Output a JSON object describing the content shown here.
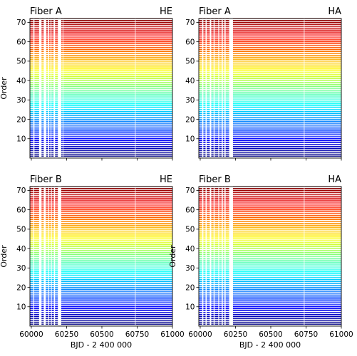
{
  "chart_data": [
    {
      "type": "scatter",
      "title_left": "Fiber A",
      "title_right": "HE",
      "xlabel": "",
      "ylabel": "Order",
      "xlim": [
        59990,
        61000
      ],
      "ylim": [
        0,
        72
      ],
      "xticks": [
        60000,
        60250,
        60500,
        60750,
        61000
      ],
      "yticks": [
        10,
        20,
        30,
        40,
        50,
        60,
        70
      ],
      "show_xtick_labels": false,
      "orders": [
        1,
        72
      ],
      "colormap": "jet",
      "observation_gaps_bjd": [
        [
          60014,
          60022
        ],
        [
          60055,
          60072
        ],
        [
          60088,
          60105
        ],
        [
          60118,
          60126
        ],
        [
          60137,
          60142
        ],
        [
          60158,
          60168
        ],
        [
          60188,
          60212
        ],
        [
          60222,
          60226
        ],
        [
          60735,
          60739
        ]
      ]
    },
    {
      "type": "scatter",
      "title_left": "Fiber A",
      "title_right": "HA",
      "xlabel": "",
      "ylabel": "",
      "xlim": [
        59990,
        61000
      ],
      "ylim": [
        0,
        72
      ],
      "xticks": [
        60000,
        60250,
        60500,
        60750,
        61000
      ],
      "yticks": [
        10,
        20,
        30,
        40,
        50,
        60,
        70
      ],
      "show_xtick_labels": false,
      "orders": [
        1,
        72
      ],
      "colormap": "jet",
      "observation_gaps_bjd": [
        [
          60014,
          60022
        ],
        [
          60038,
          60046
        ],
        [
          60068,
          60078
        ],
        [
          60095,
          60102
        ],
        [
          60128,
          60134
        ],
        [
          60152,
          60160
        ],
        [
          60172,
          60180
        ],
        [
          60205,
          60232
        ],
        [
          60735,
          60739
        ]
      ]
    },
    {
      "type": "scatter",
      "title_left": "Fiber B",
      "title_right": "HE",
      "xlabel": "BJD - 2 400 000",
      "ylabel": "Order",
      "xlim": [
        59990,
        61000
      ],
      "ylim": [
        0,
        72
      ],
      "xticks": [
        60000,
        60250,
        60500,
        60750,
        61000
      ],
      "yticks": [
        10,
        20,
        30,
        40,
        50,
        60,
        70
      ],
      "show_xtick_labels": true,
      "orders": [
        1,
        72
      ],
      "colormap": "jet",
      "observation_gaps_bjd": [
        [
          60014,
          60020
        ],
        [
          60055,
          60072
        ],
        [
          60088,
          60102
        ],
        [
          60120,
          60126
        ],
        [
          60140,
          60145
        ],
        [
          60160,
          60168
        ],
        [
          60188,
          60212
        ],
        [
          60735,
          60739
        ]
      ]
    },
    {
      "type": "scatter",
      "title_left": "Fiber B",
      "title_right": "HA",
      "xlabel": "BJD - 2 400 000",
      "ylabel": "Order",
      "xlim": [
        59990,
        61000
      ],
      "ylim": [
        0,
        72
      ],
      "xticks": [
        60000,
        60250,
        60500,
        60750,
        61000
      ],
      "yticks": [
        10,
        20,
        30,
        40,
        50,
        60,
        70
      ],
      "show_xtick_labels": true,
      "orders": [
        1,
        72
      ],
      "colormap": "jet",
      "observation_gaps_bjd": [
        [
          60014,
          60022
        ],
        [
          60038,
          60046
        ],
        [
          60068,
          60078
        ],
        [
          60095,
          60102
        ],
        [
          60128,
          60134
        ],
        [
          60152,
          60160
        ],
        [
          60172,
          60180
        ],
        [
          60205,
          60232
        ],
        [
          60735,
          60739
        ]
      ]
    }
  ]
}
